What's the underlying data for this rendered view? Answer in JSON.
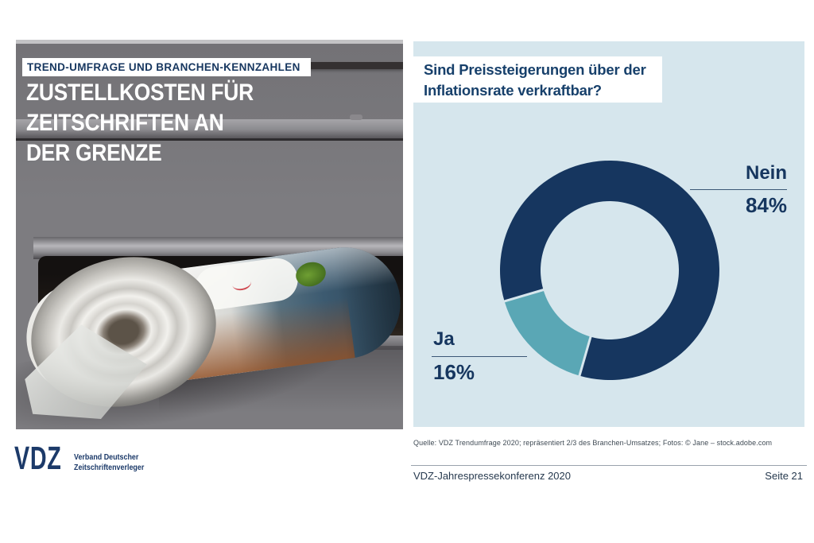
{
  "slide": {
    "kicker": "TREND-UMFRAGE UND BRANCHEN-KENNZAHLEN",
    "title": "ZUSTELLKOSTEN FÜR\nZEITSCHRIFTEN AN\nDER GRENZE",
    "logo": {
      "mark": "VDZ",
      "tagline": "Verband Deutscher\nZeitschriftenverleger"
    },
    "source_note": "Quelle: VDZ Trendumfrage 2020; repräsentiert 2/3 des Branchen-Umsatzes; Fotos: © Jane – stock.adobe.com",
    "footer": {
      "left": "VDZ-Jahrespressekonferenz 2020",
      "right": "Seite 21"
    },
    "theme": {
      "navy": "#16365f",
      "teal": "#5aa7b5",
      "panel_bg": "#d6e6ed",
      "page_bg": "#ffffff"
    }
  },
  "chart_data": {
    "type": "pie",
    "variant": "donut",
    "title": "Sind Preissteigerungen über der\nInflationsrate verkraftbar?",
    "categories": [
      "Nein",
      "Ja"
    ],
    "values": [
      84,
      16
    ],
    "unit": "%",
    "colors": {
      "Nein": "#16365f",
      "Ja": "#5aa7b5"
    },
    "display": {
      "nein_label": "Nein",
      "nein_value": "84%",
      "ja_label": "Ja",
      "ja_value": "16%"
    },
    "legend_position": "callouts",
    "geometry": {
      "start_angle_deg": 253.6,
      "inner_radius_ratio": 0.63,
      "separator_color": "#d6e6ed"
    }
  }
}
